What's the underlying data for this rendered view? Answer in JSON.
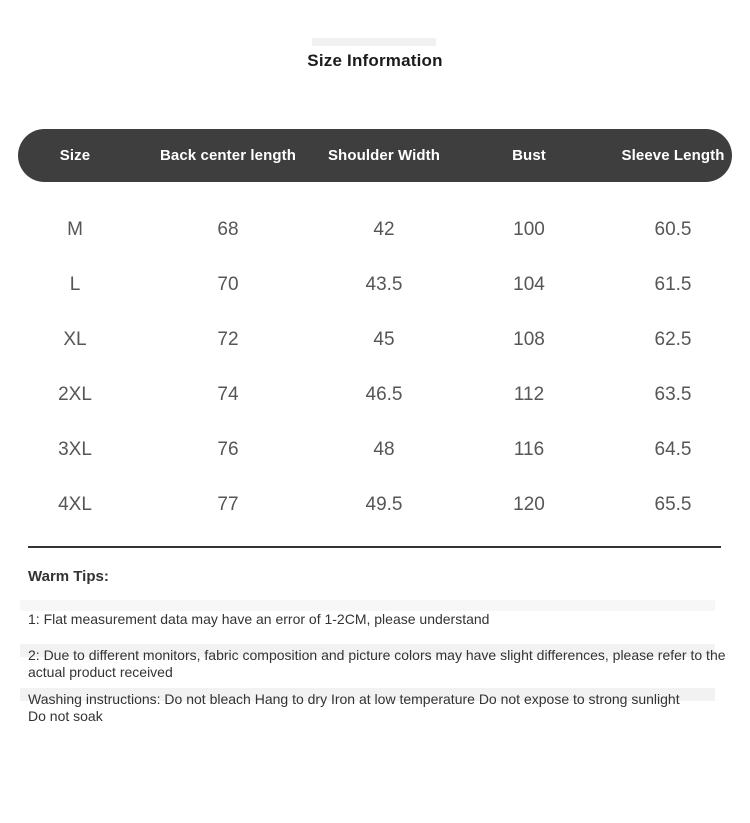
{
  "page": {
    "title": "Size Information"
  },
  "table": {
    "columns": [
      "Size",
      "Back center length",
      "Shoulder Width",
      "Bust",
      "Sleeve Length"
    ],
    "rows": [
      {
        "size": "M",
        "values": [
          "68",
          "42",
          "100",
          "60.5"
        ]
      },
      {
        "size": "L",
        "values": [
          "70",
          "43.5",
          "104",
          "61.5"
        ]
      },
      {
        "size": "XL",
        "values": [
          "72",
          "45",
          "108",
          "62.5"
        ]
      },
      {
        "size": "2XL",
        "values": [
          "74",
          "46.5",
          "112",
          "63.5"
        ]
      },
      {
        "size": "3XL",
        "values": [
          "76",
          "48",
          "116",
          "64.5"
        ]
      },
      {
        "size": "4XL",
        "values": [
          "77",
          "49.5",
          "120",
          "65.5"
        ]
      }
    ]
  },
  "notes": {
    "heading": "Warm Tips:",
    "tip1": "1: Flat measurement data may have an error of 1-2CM, please understand",
    "tip2": "2: Due to different monitors, fabric composition and picture colors may have slight differences, please refer to the actual product received",
    "washing": "Washing instructions: Do not bleach Hang to dry Iron at low temperature Do not expose to strong sunlight Do not soak"
  },
  "colors": {
    "header_background": "#3e3e3e",
    "header_text": "#ffffff",
    "row_text": "#565656",
    "note_text": "#333333",
    "divider": "#333333",
    "page_background": "#ffffff"
  }
}
